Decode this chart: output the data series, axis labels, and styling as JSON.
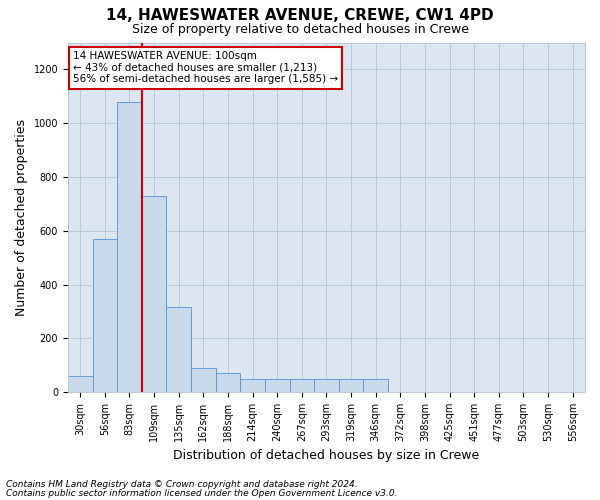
{
  "title": "14, HAWESWATER AVENUE, CREWE, CW1 4PD",
  "subtitle": "Size of property relative to detached houses in Crewe",
  "xlabel": "Distribution of detached houses by size in Crewe",
  "ylabel": "Number of detached properties",
  "categories": [
    "30sqm",
    "56sqm",
    "83sqm",
    "109sqm",
    "135sqm",
    "162sqm",
    "188sqm",
    "214sqm",
    "240sqm",
    "267sqm",
    "293sqm",
    "319sqm",
    "346sqm",
    "372sqm",
    "398sqm",
    "425sqm",
    "451sqm",
    "477sqm",
    "503sqm",
    "530sqm",
    "556sqm"
  ],
  "values": [
    60,
    570,
    1080,
    730,
    315,
    88,
    70,
    50,
    48,
    48,
    48,
    48,
    48,
    0,
    0,
    0,
    0,
    0,
    0,
    0,
    0
  ],
  "bar_color": "#c9d9ec",
  "bar_edge_color": "#5b9bd5",
  "marker_index": 3,
  "marker_color": "#cc0000",
  "ylim": [
    0,
    1300
  ],
  "yticks": [
    0,
    200,
    400,
    600,
    800,
    1000,
    1200
  ],
  "annotation_text": "14 HAWESWATER AVENUE: 100sqm\n← 43% of detached houses are smaller (1,213)\n56% of semi-detached houses are larger (1,585) →",
  "annotation_box_color": "#ffffff",
  "annotation_box_edge": "#cc0000",
  "footer1": "Contains HM Land Registry data © Crown copyright and database right 2024.",
  "footer2": "Contains public sector information licensed under the Open Government Licence v3.0.",
  "bg_color": "#ffffff",
  "plot_bg_color": "#dce6f0",
  "grid_color": "#b8c8d8",
  "title_fontsize": 11,
  "subtitle_fontsize": 9,
  "tick_fontsize": 7,
  "label_fontsize": 9,
  "annotation_fontsize": 7.5,
  "footer_fontsize": 6.5
}
